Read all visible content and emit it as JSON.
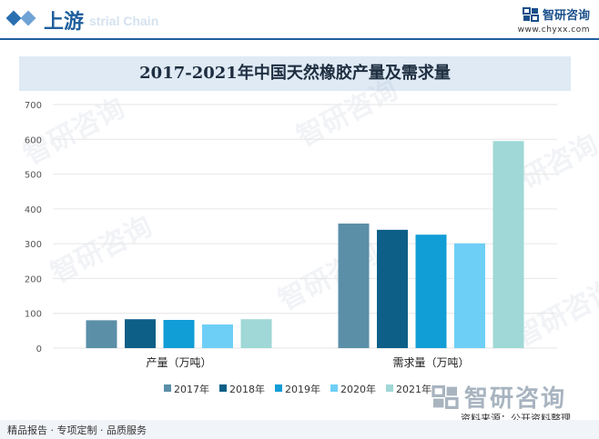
{
  "header": {
    "section_title": "上游",
    "section_subtitle": "strial Chain",
    "brand_name": "智研咨询",
    "brand_url": "www.chyxx.com"
  },
  "watermark_text": "智研咨询",
  "chart_data": {
    "type": "bar",
    "title": "2017-2021年中国天然橡胶产量及需求量",
    "categories": [
      "产量（万吨）",
      "需求量（万吨）"
    ],
    "series": [
      {
        "name": "2017年",
        "color": "#5b8fa8",
        "values": [
          80,
          358
        ]
      },
      {
        "name": "2018年",
        "color": "#0d5f87",
        "values": [
          83,
          340
        ]
      },
      {
        "name": "2019年",
        "color": "#119dd6",
        "values": [
          81,
          326
        ]
      },
      {
        "name": "2020年",
        "color": "#6ecff6",
        "values": [
          68,
          301
        ]
      },
      {
        "name": "2021年",
        "color": "#9fd8d6",
        "values": [
          83,
          595
        ]
      }
    ],
    "yticks": [
      0,
      100,
      200,
      300,
      400,
      500,
      600,
      700
    ],
    "ylim": [
      0,
      700
    ],
    "xlabel": "",
    "ylabel": "",
    "legend_position": "bottom"
  },
  "source_text": "资料来源：公开资料整理",
  "footer_text": "精品报告 · 专项定制 · 品质服务"
}
